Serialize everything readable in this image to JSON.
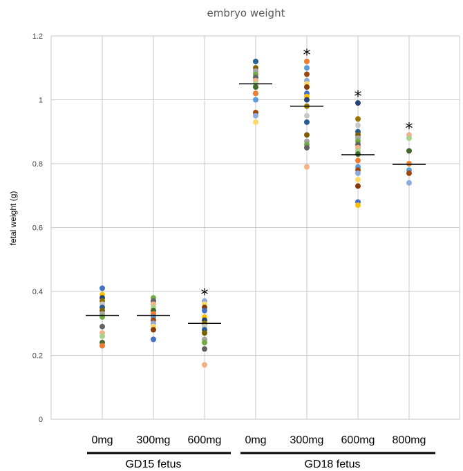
{
  "chart_data": {
    "type": "scatter",
    "title": "embryo weight",
    "xlabel": "",
    "ylabel": "fetal weight (g)",
    "ylim": [
      0,
      1.2
    ],
    "yticks": [
      "0",
      "0.2",
      "0.4",
      "0.6",
      "0.8",
      "1",
      "1.2"
    ],
    "grid": true,
    "categories": [
      "0mg",
      "300mg",
      "600mg",
      "0mg",
      "300mg",
      "600mg",
      "800mg"
    ],
    "groups": [
      {
        "label": "GD15 fetus",
        "categories": [
          0,
          1,
          2
        ]
      },
      {
        "label": "GD18 fetus",
        "categories": [
          3,
          4,
          5,
          6
        ]
      }
    ],
    "means": [
      0.325,
      0.325,
      0.3,
      1.05,
      0.98,
      0.828,
      0.798
    ],
    "significance": [
      "",
      "",
      "*",
      "",
      "*",
      "*",
      "*"
    ],
    "points": [
      [
        0.41,
        0.39,
        0.38,
        0.37,
        0.36,
        0.35,
        0.34,
        0.33,
        0.32,
        0.29,
        0.27,
        0.26,
        0.24,
        0.23
      ],
      [
        0.38,
        0.37,
        0.36,
        0.35,
        0.34,
        0.33,
        0.32,
        0.31,
        0.3,
        0.29,
        0.28,
        0.25
      ],
      [
        0.37,
        0.36,
        0.35,
        0.34,
        0.32,
        0.31,
        0.3,
        0.29,
        0.28,
        0.27,
        0.25,
        0.24,
        0.22,
        0.17
      ],
      [
        1.12,
        1.1,
        1.09,
        1.08,
        1.07,
        1.06,
        1.05,
        1.04,
        1.02,
        1.0,
        0.96,
        0.95,
        0.93
      ],
      [
        1.12,
        1.1,
        1.08,
        1.06,
        1.05,
        1.04,
        1.02,
        1.01,
        1.0,
        0.98,
        0.95,
        0.93,
        0.89,
        0.87,
        0.86,
        0.85,
        0.79
      ],
      [
        0.99,
        0.94,
        0.92,
        0.9,
        0.89,
        0.88,
        0.87,
        0.86,
        0.85,
        0.84,
        0.83,
        0.81,
        0.79,
        0.78,
        0.77,
        0.75,
        0.73,
        0.68,
        0.67
      ],
      [
        0.89,
        0.88,
        0.84,
        0.8,
        0.78,
        0.77,
        0.74
      ]
    ]
  },
  "colors": {
    "grid": "#c8c8c8",
    "mean_line": "#000000",
    "palette": [
      "#4472c4",
      "#ed7d31",
      "#a5a5a5",
      "#ffc000",
      "#5b9bd5",
      "#70ad47",
      "#264478",
      "#9e480e",
      "#636363",
      "#997300",
      "#8faadc",
      "#f4b183",
      "#c9c9c9",
      "#ffd966",
      "#a9d18e",
      "#255e91",
      "#843c0c",
      "#43682b",
      "#7f6000"
    ]
  }
}
